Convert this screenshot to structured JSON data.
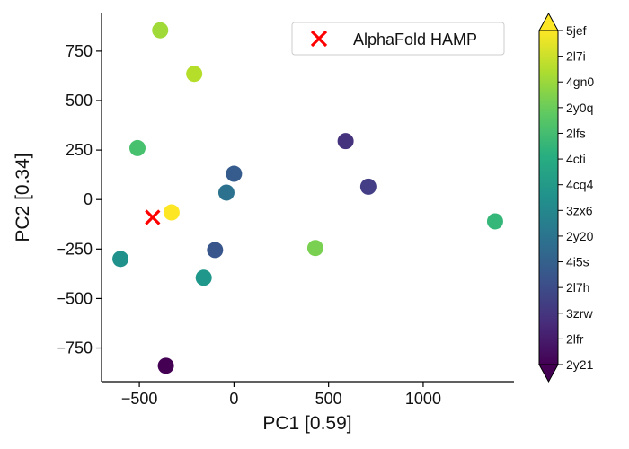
{
  "chart_data": {
    "type": "scatter",
    "xlabel": "PC1 [0.59]",
    "ylabel": "PC2 [0.34]",
    "xlim": [
      -700,
      1480
    ],
    "ylim": [
      -920,
      940
    ],
    "x_ticks": [
      -500,
      0,
      500,
      1000
    ],
    "y_ticks": [
      -750,
      -500,
      -250,
      0,
      250,
      500,
      750
    ],
    "x_tick_labels": [
      "−500",
      "0",
      "500",
      "1000"
    ],
    "y_tick_labels": [
      "−750",
      "−500",
      "−250",
      "0",
      "250",
      "500",
      "750"
    ],
    "grid": false,
    "colormap": "viridis",
    "colorbar": {
      "categories": [
        "2y21",
        "2lfr",
        "3zrw",
        "2l7h",
        "4i5s",
        "2y20",
        "3zx6",
        "4cq4",
        "4cti",
        "2lfs",
        "2y0q",
        "4gn0",
        "2l7i",
        "5jef"
      ],
      "extend": "both"
    },
    "points": [
      {
        "x": -390,
        "y": 855,
        "category": "2y0q",
        "color": "#a0da39"
      },
      {
        "x": -210,
        "y": 635,
        "category": "4gn0",
        "color": "#b5de2b"
      },
      {
        "x": -510,
        "y": 260,
        "category": "2lfs",
        "color": "#48c16e"
      },
      {
        "x": -330,
        "y": -65,
        "category": "5jef",
        "color": "#fde725"
      },
      {
        "x": 590,
        "y": 295,
        "category": "2lfr",
        "color": "#46337e"
      },
      {
        "x": 0,
        "y": 130,
        "category": "2l7h",
        "color": "#365c8d"
      },
      {
        "x": 710,
        "y": 65,
        "category": "3zrw",
        "color": "#433e85"
      },
      {
        "x": -40,
        "y": 35,
        "category": "4i5s",
        "color": "#2c728e"
      },
      {
        "x": 1380,
        "y": -110,
        "category": "2lfs",
        "color": "#35b779"
      },
      {
        "x": 430,
        "y": -245,
        "category": "2y0q",
        "color": "#7ad151"
      },
      {
        "x": -100,
        "y": -255,
        "category": "2l7h",
        "color": "#39568c"
      },
      {
        "x": -600,
        "y": -300,
        "category": "4cq4",
        "color": "#21918c"
      },
      {
        "x": -160,
        "y": -395,
        "category": "3zx6",
        "color": "#1f988b"
      },
      {
        "x": -360,
        "y": -840,
        "category": "2y21",
        "color": "#440154"
      }
    ],
    "reference_points": [
      {
        "name": "AlphaFold HAMP",
        "x": -430,
        "y": -90,
        "marker": "x",
        "color": "#ff0000"
      }
    ],
    "legend": {
      "entries": [
        "AlphaFold HAMP"
      ],
      "placement": "top-right"
    }
  }
}
